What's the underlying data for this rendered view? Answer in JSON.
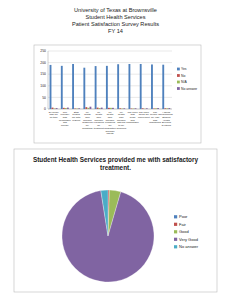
{
  "header": {
    "lines": [
      "University of Texas at Brownsville",
      "Student Health Services",
      "Patient Satisfaction Survey Results",
      "FY 14"
    ]
  },
  "chart_data": [
    {
      "type": "bar",
      "categories": [
        "Dr./nurse saw me on time",
        "The provider was personable and friendly",
        "Staff treated me with respect",
        "My health care provider answered my questions",
        "My health care provider explained my treatment",
        "My health care provider explained my medication and side effects",
        "My health care provider listened to my concerns",
        "The clinic was clean and comfortable",
        "The clinic hours are convenient",
        "The privacy of my visit was maintained",
        "I would recommend Student Health Services to others"
      ],
      "series": [
        {
          "name": "Yes",
          "color": "#4f81bd",
          "values": [
            190,
            186,
            194,
            178,
            185,
            186,
            193,
            194,
            194,
            192,
            191
          ]
        },
        {
          "name": "No",
          "color": "#c0504d",
          "values": [
            6,
            5,
            2,
            8,
            6,
            5,
            3,
            2,
            3,
            2,
            3
          ]
        },
        {
          "name": "N/A",
          "color": "#9bbb59",
          "values": [
            2,
            4,
            2,
            5,
            4,
            5,
            2,
            2,
            1,
            3,
            3
          ]
        },
        {
          "name": "No answer",
          "color": "#8064a2",
          "values": [
            4,
            6,
            3,
            10,
            6,
            5,
            3,
            3,
            3,
            4,
            4
          ]
        }
      ],
      "ylim": [
        0,
        250
      ],
      "yticks": [
        0,
        50,
        100,
        150,
        200,
        250
      ],
      "grid": true,
      "legend": "right"
    },
    {
      "type": "pie",
      "title": "Student Health Services provided me with satisfactory treatment.",
      "categories": [
        "Poor",
        "Fair",
        "Good",
        "Very Good",
        "No answer"
      ],
      "values": [
        0,
        0.5,
        4,
        93,
        2.5
      ],
      "colors": [
        "#4f81bd",
        "#c0504d",
        "#9bbb59",
        "#8064a2",
        "#4bacc6"
      ],
      "legend": "right"
    }
  ]
}
